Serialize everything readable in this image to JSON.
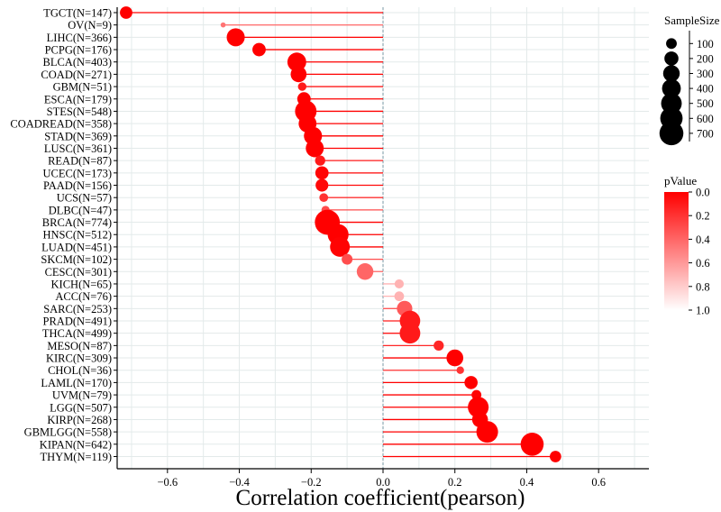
{
  "chart_data": {
    "type": "lollipop",
    "xlabel": "Correlation coefficient(pearson)",
    "xlim": [
      -0.74,
      0.74
    ],
    "xticks": [
      -0.6,
      -0.4,
      -0.2,
      0.0,
      0.2,
      0.4,
      0.6
    ],
    "xtick_labels": [
      "−0.6",
      "−0.4",
      "−0.2",
      "0.0",
      "0.2",
      "0.4",
      "0.6"
    ],
    "reference_line": 0.0,
    "points": [
      {
        "label": "TGCT(N=147)",
        "value": -0.715,
        "pvalue": 0.0,
        "n": 147
      },
      {
        "label": "OV(N=9)",
        "value": -0.445,
        "pvalue": 0.45,
        "n": 9
      },
      {
        "label": "LIHC(N=366)",
        "value": -0.41,
        "pvalue": 0.0,
        "n": 366
      },
      {
        "label": "PCPG(N=176)",
        "value": -0.345,
        "pvalue": 0.0,
        "n": 176
      },
      {
        "label": "BLCA(N=403)",
        "value": -0.24,
        "pvalue": 0.0,
        "n": 403
      },
      {
        "label": "COAD(N=271)",
        "value": -0.235,
        "pvalue": 0.0,
        "n": 271
      },
      {
        "label": "GBM(N=51)",
        "value": -0.225,
        "pvalue": 0.1,
        "n": 51
      },
      {
        "label": "ESCA(N=179)",
        "value": -0.22,
        "pvalue": 0.0,
        "n": 179
      },
      {
        "label": "STES(N=548)",
        "value": -0.215,
        "pvalue": 0.0,
        "n": 548
      },
      {
        "label": "COADREAD(N=358)",
        "value": -0.21,
        "pvalue": 0.0,
        "n": 358
      },
      {
        "label": "STAD(N=369)",
        "value": -0.195,
        "pvalue": 0.0,
        "n": 369
      },
      {
        "label": "LUSC(N=361)",
        "value": -0.19,
        "pvalue": 0.0,
        "n": 361
      },
      {
        "label": "READ(N=87)",
        "value": -0.175,
        "pvalue": 0.1,
        "n": 87
      },
      {
        "label": "UCEC(N=173)",
        "value": -0.17,
        "pvalue": 0.02,
        "n": 173
      },
      {
        "label": "PAAD(N=156)",
        "value": -0.17,
        "pvalue": 0.03,
        "n": 156
      },
      {
        "label": "UCS(N=57)",
        "value": -0.165,
        "pvalue": 0.2,
        "n": 57
      },
      {
        "label": "DLBC(N=47)",
        "value": -0.16,
        "pvalue": 0.3,
        "n": 47
      },
      {
        "label": "BRCA(N=774)",
        "value": -0.155,
        "pvalue": 0.0,
        "n": 774
      },
      {
        "label": "HNSC(N=512)",
        "value": -0.125,
        "pvalue": 0.0,
        "n": 512
      },
      {
        "label": "LUAD(N=451)",
        "value": -0.12,
        "pvalue": 0.01,
        "n": 451
      },
      {
        "label": "SKCM(N=102)",
        "value": -0.1,
        "pvalue": 0.3,
        "n": 102
      },
      {
        "label": "CESC(N=301)",
        "value": -0.05,
        "pvalue": 0.4,
        "n": 301
      },
      {
        "label": "KICH(N=65)",
        "value": 0.045,
        "pvalue": 0.7,
        "n": 65
      },
      {
        "label": "ACC(N=76)",
        "value": 0.045,
        "pvalue": 0.7,
        "n": 76
      },
      {
        "label": "SARC(N=253)",
        "value": 0.06,
        "pvalue": 0.35,
        "n": 253
      },
      {
        "label": "PRAD(N=491)",
        "value": 0.075,
        "pvalue": 0.1,
        "n": 491
      },
      {
        "label": "THCA(N=499)",
        "value": 0.075,
        "pvalue": 0.1,
        "n": 499
      },
      {
        "label": "MESO(N=87)",
        "value": 0.155,
        "pvalue": 0.15,
        "n": 87
      },
      {
        "label": "KIRC(N=309)",
        "value": 0.2,
        "pvalue": 0.0,
        "n": 309
      },
      {
        "label": "CHOL(N=36)",
        "value": 0.215,
        "pvalue": 0.2,
        "n": 36
      },
      {
        "label": "LAML(N=170)",
        "value": 0.245,
        "pvalue": 0.0,
        "n": 170
      },
      {
        "label": "UVM(N=79)",
        "value": 0.26,
        "pvalue": 0.02,
        "n": 79
      },
      {
        "label": "LGG(N=507)",
        "value": 0.265,
        "pvalue": 0.0,
        "n": 507
      },
      {
        "label": "KIRP(N=268)",
        "value": 0.27,
        "pvalue": 0.0,
        "n": 268
      },
      {
        "label": "GBMLGG(N=558)",
        "value": 0.29,
        "pvalue": 0.0,
        "n": 558
      },
      {
        "label": "KIPAN(N=642)",
        "value": 0.415,
        "pvalue": 0.0,
        "n": 642
      },
      {
        "label": "THYM(N=119)",
        "value": 0.48,
        "pvalue": 0.0,
        "n": 119
      }
    ],
    "size_legend": {
      "title": "SampleSize",
      "values": [
        100,
        200,
        300,
        400,
        500,
        600,
        700
      ]
    },
    "color_legend": {
      "title": "pValue",
      "ticks": [
        0.0,
        0.2,
        0.4,
        0.6,
        0.8,
        1.0
      ],
      "tick_labels": [
        "0.0",
        "0.2",
        "0.4",
        "0.6",
        "0.8",
        "1.0"
      ],
      "color_low": "#ff0000",
      "color_high": "#ffffff"
    },
    "colors": {
      "grid": "#e3eaea",
      "refline": "#7a9aa6",
      "axis": "#000000",
      "size_legend_dot": "#000000"
    }
  }
}
